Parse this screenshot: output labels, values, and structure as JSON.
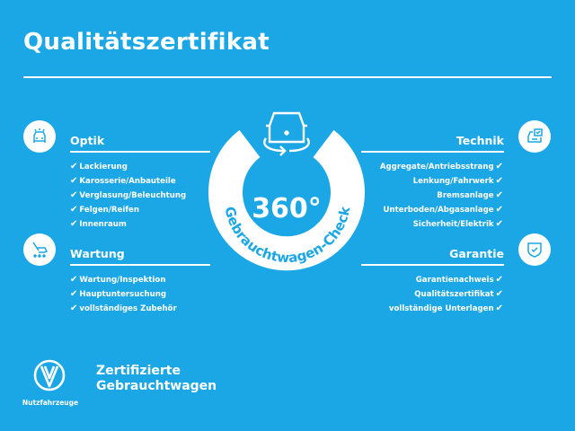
{
  "title": "Qualitätszertifikat",
  "check_glyph": "✔",
  "center": {
    "big": "360°",
    "arc_text": "Gebrauchtwagen-Check",
    "icon": "car-360-icon"
  },
  "optik": {
    "heading": "Optik",
    "icon": "car-lights-icon",
    "items": [
      "Lackierung",
      "Karosserie/Anbauteile",
      "Verglasung/Beleuchtung",
      "Felgen/Reifen",
      "Innenraum"
    ]
  },
  "wartung": {
    "heading": "Wartung",
    "icon": "service-wrench-icon",
    "items": [
      "Wartung/Inspektion",
      "Hauptuntersuchung",
      "vollständiges Zubehör"
    ]
  },
  "technik": {
    "heading": "Technik",
    "icon": "car-checklist-icon",
    "items": [
      "Aggregate/Antriebsstrang",
      "Lenkung/Fahrwerk",
      "Bremsanlage",
      "Unterboden/Abgasanlage",
      "Sicherheit/Elektrik"
    ]
  },
  "garantie": {
    "heading": "Garantie",
    "icon": "shield-check-icon",
    "items": [
      "Garantienachweis",
      "Qualitätszertifikat",
      "vollständige Unterlagen"
    ]
  },
  "footer": {
    "logo_sub": "Nutzfahrzeuge",
    "line1": "Zertifizierte",
    "line2": "Gebrauchtwagen"
  },
  "colors": {
    "background": "#1ba7e5",
    "icon_stroke": "#1ba7e5"
  }
}
